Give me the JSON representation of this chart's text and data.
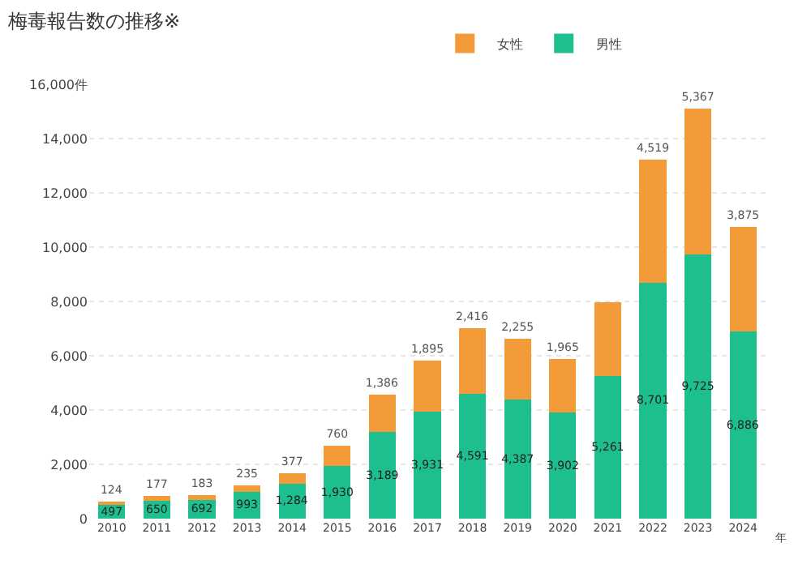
{
  "chart_data": {
    "type": "bar",
    "title": "梅毒報告数の推移※",
    "xlabel": "年",
    "stacked": true,
    "legend": "top right",
    "grid": "y",
    "categories": [
      "2010",
      "2011",
      "2012",
      "2013",
      "2014",
      "2015",
      "2016",
      "2017",
      "2018",
      "2019",
      "2020",
      "2021",
      "2022",
      "2023",
      "2024"
    ],
    "series": [
      {
        "name": "男性",
        "color": "#1dbf8e",
        "values": [
          497,
          650,
          692,
          993,
          1284,
          1930,
          3189,
          3931,
          4591,
          4387,
          3902,
          5261,
          8701,
          9725,
          6886
        ],
        "value_labels": [
          "497",
          "650",
          "692",
          "993",
          "1,284",
          "1,930",
          "3,189",
          "3,931",
          "4,591",
          "4,387",
          "3,902",
          "5,261",
          "8,701",
          "9,725",
          "6,886"
        ]
      },
      {
        "name": "女性",
        "color": "#f29b38",
        "values": [
          124,
          177,
          183,
          235,
          377,
          760,
          1386,
          1895,
          2416,
          2255,
          1965,
          2700,
          4519,
          5367,
          3875
        ],
        "value_labels": [
          "124",
          "177",
          "183",
          "235",
          "377",
          "760",
          "1,386",
          "1,895",
          "2,416",
          "2,255",
          "1,965",
          null,
          "4,519",
          "5,367",
          "3,875"
        ]
      }
    ],
    "ylim": [
      0,
      16000
    ],
    "yticks": [
      0,
      {
        "value": 2000,
        "label": "2,000"
      },
      {
        "value": 4000,
        "label": "4,000"
      },
      {
        "value": 6000,
        "label": "6,000"
      },
      {
        "value": 8000,
        "label": "8,000"
      },
      {
        "value": 10000,
        "label": "10,000"
      },
      {
        "value": 12000,
        "label": "12,000"
      },
      {
        "value": 14000,
        "label": "14,000"
      },
      {
        "value": 16000,
        "label": "16,000件"
      }
    ]
  }
}
